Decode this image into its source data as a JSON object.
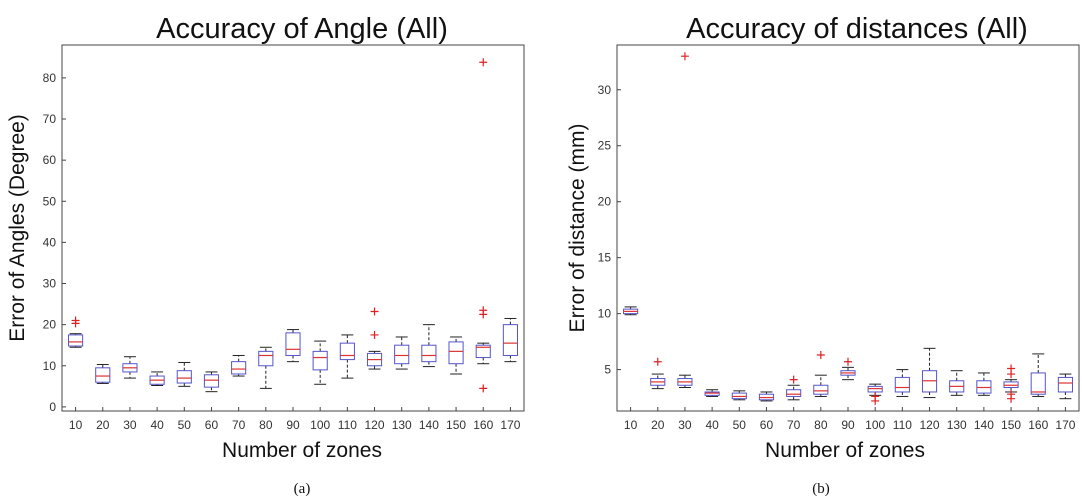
{
  "chart_data": [
    {
      "type": "box",
      "title": "Accuracy of Angle (All)",
      "xlabel": "Number of zones",
      "ylabel": "Error of Angles (Degree)",
      "caption": "(a)",
      "ylim": [
        -1,
        88
      ],
      "yticks": [
        0,
        10,
        20,
        30,
        40,
        50,
        60,
        70,
        80
      ],
      "grid": false,
      "colors": {
        "box": "#5555cc",
        "median": "#dd3333",
        "whisker": "#222222",
        "outlier": "#e02020"
      },
      "categories": [
        "10",
        "20",
        "30",
        "40",
        "50",
        "60",
        "70",
        "80",
        "90",
        "100",
        "110",
        "120",
        "130",
        "140",
        "150",
        "160",
        "170"
      ],
      "boxes": [
        {
          "min": 14.5,
          "q1": 14.8,
          "median": 15.8,
          "q3": 17.5,
          "max": 17.8,
          "outliers": [
            20.3,
            21.0
          ]
        },
        {
          "min": 5.7,
          "q1": 6.0,
          "median": 7.5,
          "q3": 9.5,
          "max": 10.3,
          "outliers": []
        },
        {
          "min": 7.0,
          "q1": 8.5,
          "median": 9.5,
          "q3": 10.5,
          "max": 12.2,
          "outliers": []
        },
        {
          "min": 5.2,
          "q1": 5.5,
          "median": 6.5,
          "q3": 7.5,
          "max": 8.5,
          "outliers": []
        },
        {
          "min": 5.0,
          "q1": 5.8,
          "median": 7.0,
          "q3": 8.8,
          "max": 10.8,
          "outliers": []
        },
        {
          "min": 3.7,
          "q1": 4.8,
          "median": 6.5,
          "q3": 7.8,
          "max": 8.5,
          "outliers": []
        },
        {
          "min": 7.5,
          "q1": 8.0,
          "median": 9.2,
          "q3": 11.0,
          "max": 12.5,
          "outliers": []
        },
        {
          "min": 4.5,
          "q1": 10.0,
          "median": 12.5,
          "q3": 13.5,
          "max": 14.5,
          "outliers": []
        },
        {
          "min": 11.0,
          "q1": 12.5,
          "median": 14.0,
          "q3": 18.0,
          "max": 18.8,
          "outliers": []
        },
        {
          "min": 5.5,
          "q1": 9.0,
          "median": 12.0,
          "q3": 13.5,
          "max": 16.0,
          "outliers": []
        },
        {
          "min": 7.0,
          "q1": 11.5,
          "median": 12.5,
          "q3": 15.5,
          "max": 17.5,
          "outliers": []
        },
        {
          "min": 9.2,
          "q1": 10.0,
          "median": 11.5,
          "q3": 13.0,
          "max": 13.5,
          "outliers": [
            17.5,
            23.2
          ]
        },
        {
          "min": 9.2,
          "q1": 10.5,
          "median": 12.5,
          "q3": 15.0,
          "max": 17.0,
          "outliers": []
        },
        {
          "min": 9.8,
          "q1": 11.0,
          "median": 12.5,
          "q3": 15.0,
          "max": 20.0,
          "outliers": []
        },
        {
          "min": 8.0,
          "q1": 10.5,
          "median": 13.5,
          "q3": 15.8,
          "max": 17.0,
          "outliers": []
        },
        {
          "min": 10.5,
          "q1": 12.0,
          "median": 14.5,
          "q3": 15.0,
          "max": 15.5,
          "outliers": [
            4.5,
            22.5,
            23.5,
            83.8
          ]
        },
        {
          "min": 11.0,
          "q1": 12.5,
          "median": 15.5,
          "q3": 20.0,
          "max": 21.5,
          "outliers": []
        }
      ]
    },
    {
      "type": "box",
      "title": "Accuracy of distances (All)",
      "xlabel": "Number of zones",
      "ylabel": "Error of distance (mm)",
      "caption": "(b)",
      "ylim": [
        1.3,
        34
      ],
      "yticks": [
        5,
        10,
        15,
        20,
        25,
        30
      ],
      "grid": false,
      "colors": {
        "box": "#5555cc",
        "median": "#dd3333",
        "whisker": "#222222",
        "outlier": "#e02020"
      },
      "categories": [
        "10",
        "20",
        "30",
        "40",
        "50",
        "60",
        "70",
        "80",
        "90",
        "100",
        "110",
        "120",
        "130",
        "140",
        "150",
        "160",
        "170"
      ],
      "boxes": [
        {
          "min": 9.9,
          "q1": 10.0,
          "median": 10.2,
          "q3": 10.4,
          "max": 10.6,
          "outliers": []
        },
        {
          "min": 3.3,
          "q1": 3.6,
          "median": 3.9,
          "q3": 4.2,
          "max": 4.6,
          "outliers": [
            5.7
          ]
        },
        {
          "min": 3.4,
          "q1": 3.6,
          "median": 3.9,
          "q3": 4.2,
          "max": 4.5,
          "outliers": [
            33.0
          ]
        },
        {
          "min": 2.6,
          "q1": 2.7,
          "median": 2.9,
          "q3": 3.0,
          "max": 3.2,
          "outliers": []
        },
        {
          "min": 2.3,
          "q1": 2.4,
          "median": 2.6,
          "q3": 2.9,
          "max": 3.1,
          "outliers": []
        },
        {
          "min": 2.2,
          "q1": 2.3,
          "median": 2.5,
          "q3": 2.8,
          "max": 3.0,
          "outliers": []
        },
        {
          "min": 2.3,
          "q1": 2.6,
          "median": 2.8,
          "q3": 3.2,
          "max": 3.6,
          "outliers": [
            4.1
          ]
        },
        {
          "min": 2.6,
          "q1": 2.8,
          "median": 3.1,
          "q3": 3.6,
          "max": 4.5,
          "outliers": [
            6.3
          ]
        },
        {
          "min": 4.1,
          "q1": 4.5,
          "median": 4.7,
          "q3": 4.9,
          "max": 5.2,
          "outliers": [
            5.7
          ]
        },
        {
          "min": 2.7,
          "q1": 3.0,
          "median": 3.3,
          "q3": 3.5,
          "max": 3.7,
          "outliers": [
            2.2,
            2.6
          ]
        },
        {
          "min": 2.6,
          "q1": 3.0,
          "median": 3.4,
          "q3": 4.3,
          "max": 5.0,
          "outliers": []
        },
        {
          "min": 2.5,
          "q1": 3.0,
          "median": 4.0,
          "q3": 4.9,
          "max": 6.9,
          "outliers": []
        },
        {
          "min": 2.7,
          "q1": 3.0,
          "median": 3.5,
          "q3": 4.0,
          "max": 4.9,
          "outliers": []
        },
        {
          "min": 2.7,
          "q1": 2.9,
          "median": 3.4,
          "q3": 4.0,
          "max": 4.7,
          "outliers": []
        },
        {
          "min": 3.0,
          "q1": 3.4,
          "median": 3.6,
          "q3": 3.9,
          "max": 4.1,
          "outliers": [
            2.4,
            2.8,
            4.6,
            5.1
          ]
        },
        {
          "min": 2.6,
          "q1": 2.8,
          "median": 3.0,
          "q3": 4.7,
          "max": 6.4,
          "outliers": []
        },
        {
          "min": 2.4,
          "q1": 3.0,
          "median": 3.8,
          "q3": 4.3,
          "max": 4.6,
          "outliers": []
        }
      ]
    }
  ]
}
